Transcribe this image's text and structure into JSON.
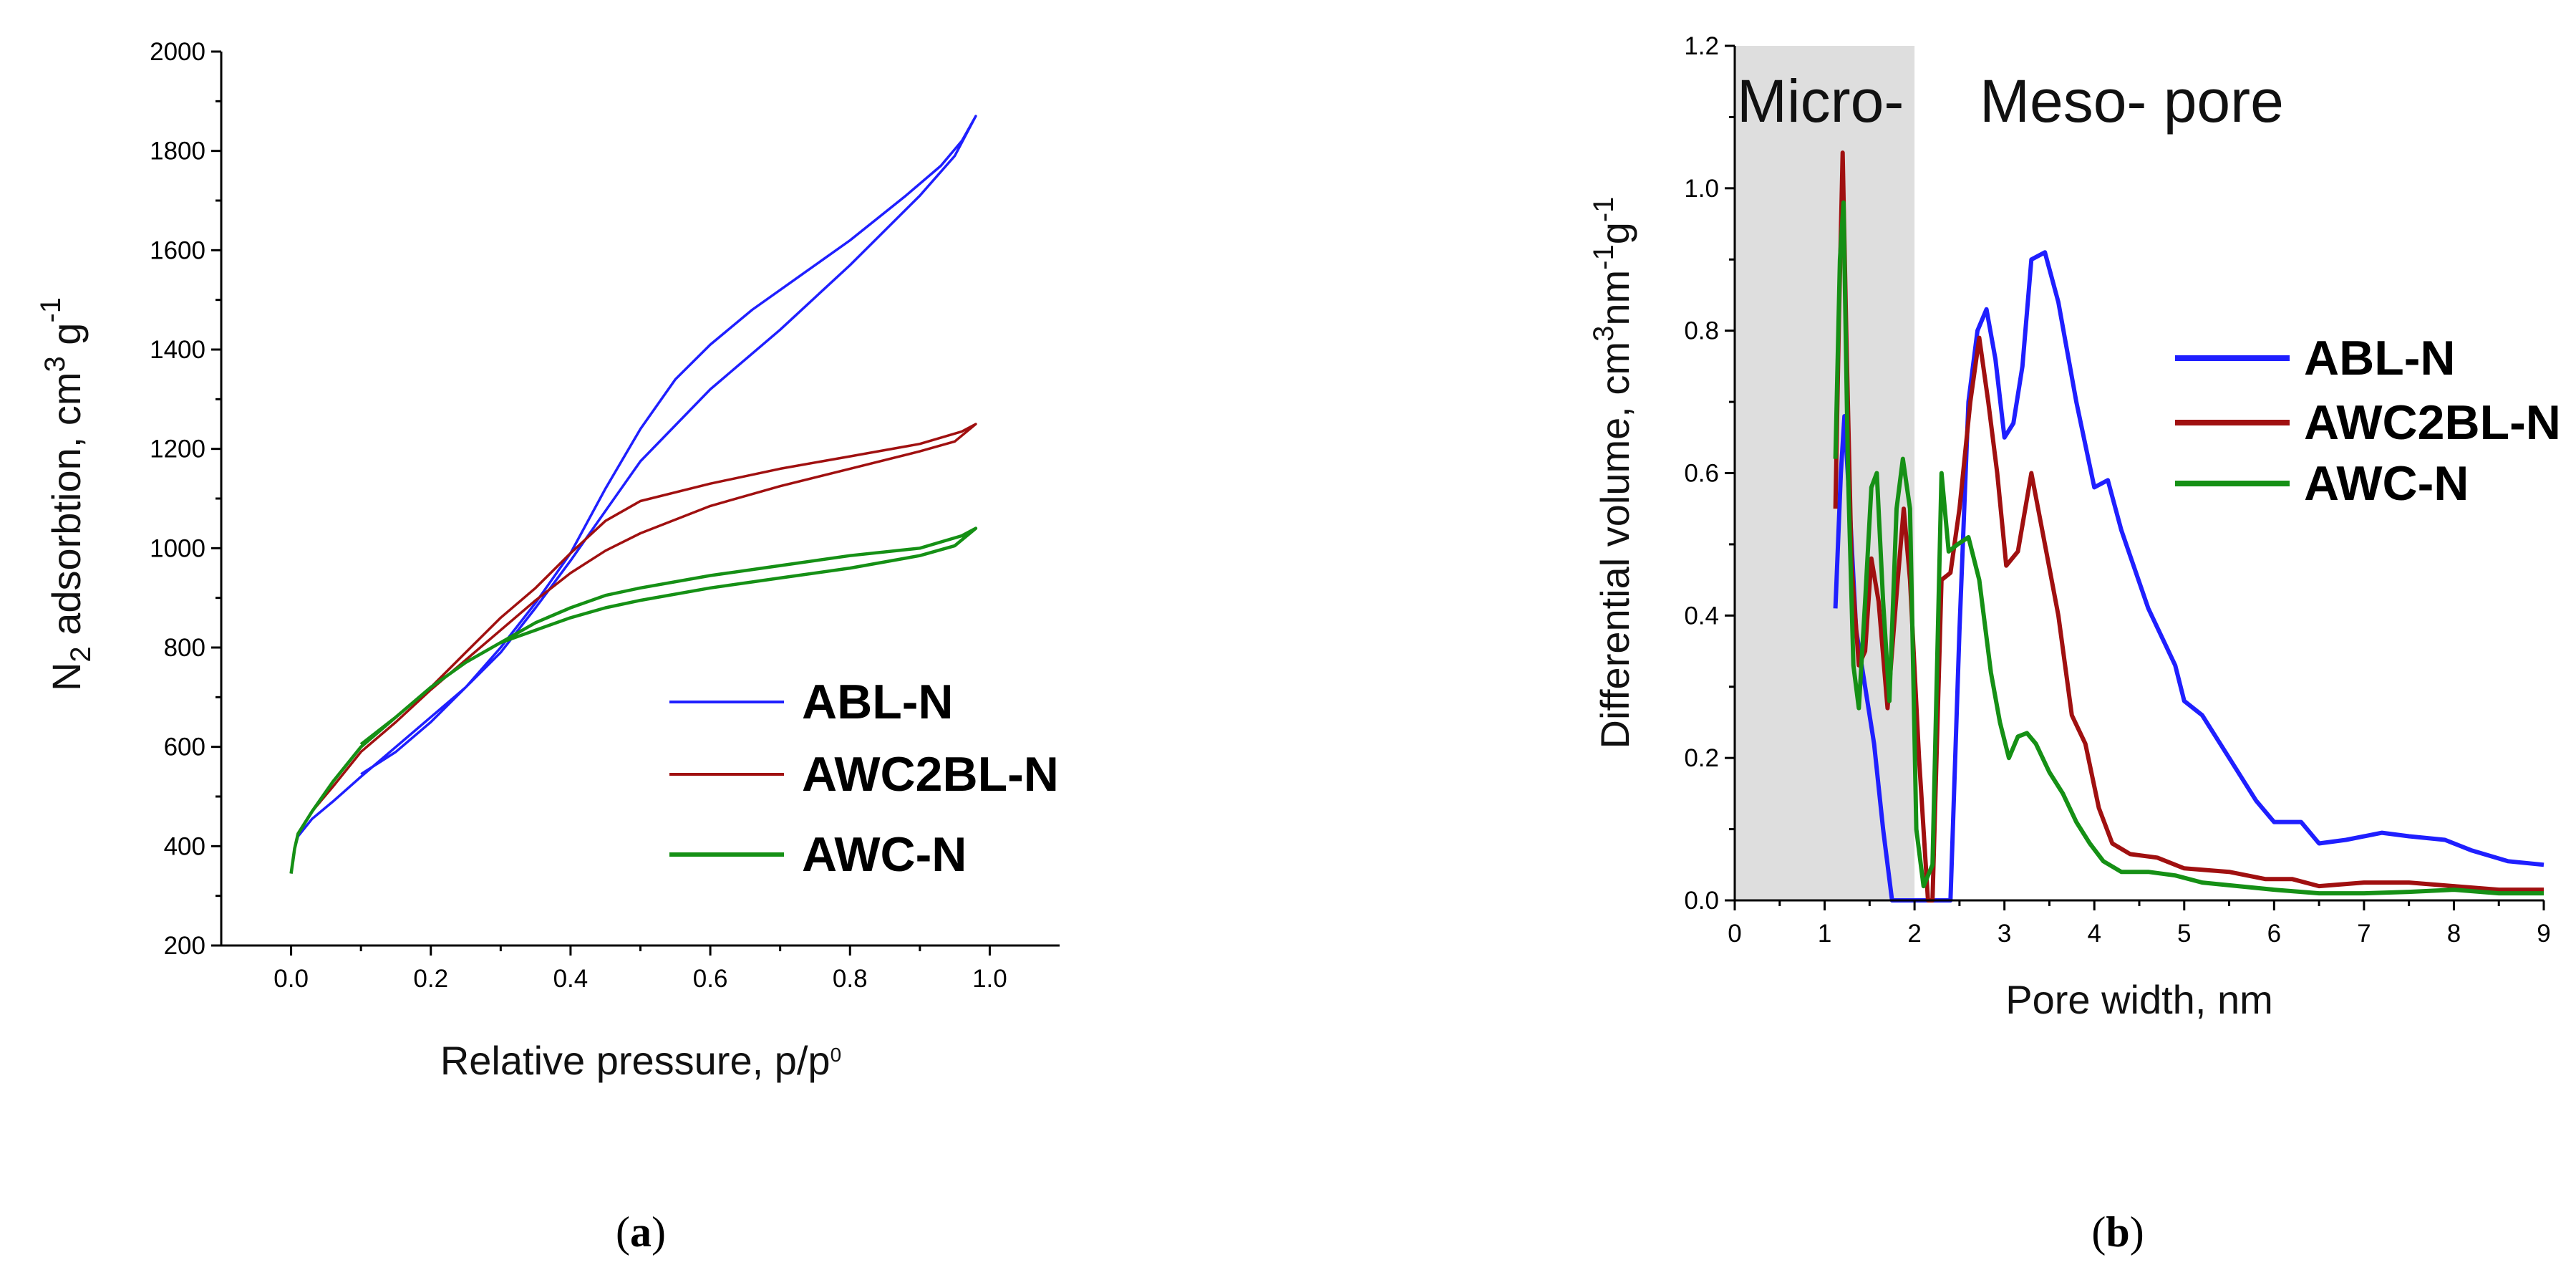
{
  "chart_data": [
    {
      "type": "line",
      "panel": "(a)",
      "xlabel": "Relative pressure, p/p",
      "xlabel_sup": "0",
      "ylabel": "N",
      "ylabel_sub": "2",
      "ylabel_rest": " adsorbtion, cm",
      "ylabel_sup": "3",
      "ylabel_end": " g",
      "ylabel_sup2": "-1",
      "xlim": [
        -0.1,
        1.1
      ],
      "ylim": [
        200,
        2000
      ],
      "xticks": [
        "0.0",
        "0.2",
        "0.4",
        "0.6",
        "0.8",
        "1.0"
      ],
      "yticks": [
        "200",
        "400",
        "600",
        "800",
        "1000",
        "1200",
        "1400",
        "1600",
        "1800",
        "2000"
      ],
      "legend_position": "bottom-right",
      "series": [
        {
          "name": "ABL-N",
          "color": "#1f1fff",
          "points": [
            [
              0.0,
              345
            ],
            [
              0.005,
              395
            ],
            [
              0.01,
              420
            ],
            [
              0.03,
              455
            ],
            [
              0.06,
              490
            ],
            [
              0.1,
              540
            ],
            [
              0.15,
              600
            ],
            [
              0.2,
              660
            ],
            [
              0.25,
              720
            ],
            [
              0.3,
              790
            ],
            [
              0.35,
              880
            ],
            [
              0.4,
              975
            ],
            [
              0.45,
              1075
            ],
            [
              0.5,
              1175
            ],
            [
              0.6,
              1320
            ],
            [
              0.7,
              1440
            ],
            [
              0.8,
              1570
            ],
            [
              0.9,
              1710
            ],
            [
              0.95,
              1790
            ],
            [
              0.98,
              1870
            ],
            [
              0.96,
              1820
            ],
            [
              0.93,
              1770
            ],
            [
              0.88,
              1710
            ],
            [
              0.8,
              1620
            ],
            [
              0.72,
              1540
            ],
            [
              0.66,
              1480
            ],
            [
              0.6,
              1410
            ],
            [
              0.55,
              1340
            ],
            [
              0.5,
              1240
            ],
            [
              0.45,
              1120
            ],
            [
              0.4,
              990
            ],
            [
              0.35,
              890
            ],
            [
              0.3,
              800
            ],
            [
              0.25,
              720
            ],
            [
              0.2,
              650
            ],
            [
              0.15,
              590
            ],
            [
              0.1,
              545
            ]
          ]
        },
        {
          "name": "AWC2BL-N",
          "color": "#a01010",
          "points": [
            [
              0.0,
              345
            ],
            [
              0.005,
              395
            ],
            [
              0.01,
              425
            ],
            [
              0.03,
              470
            ],
            [
              0.06,
              520
            ],
            [
              0.1,
              590
            ],
            [
              0.15,
              650
            ],
            [
              0.2,
              715
            ],
            [
              0.25,
              775
            ],
            [
              0.3,
              835
            ],
            [
              0.35,
              895
            ],
            [
              0.4,
              950
            ],
            [
              0.45,
              995
            ],
            [
              0.5,
              1030
            ],
            [
              0.6,
              1085
            ],
            [
              0.7,
              1125
            ],
            [
              0.8,
              1160
            ],
            [
              0.9,
              1195
            ],
            [
              0.95,
              1215
            ],
            [
              0.98,
              1250
            ],
            [
              0.96,
              1235
            ],
            [
              0.9,
              1210
            ],
            [
              0.8,
              1185
            ],
            [
              0.7,
              1160
            ],
            [
              0.6,
              1130
            ],
            [
              0.5,
              1095
            ],
            [
              0.45,
              1055
            ],
            [
              0.4,
              990
            ],
            [
              0.35,
              920
            ],
            [
              0.3,
              860
            ],
            [
              0.25,
              790
            ],
            [
              0.2,
              720
            ],
            [
              0.15,
              660
            ],
            [
              0.1,
              605
            ]
          ]
        },
        {
          "name": "AWC-N",
          "color": "#159015",
          "points": [
            [
              0.0,
              345
            ],
            [
              0.005,
              395
            ],
            [
              0.01,
              425
            ],
            [
              0.03,
              470
            ],
            [
              0.06,
              530
            ],
            [
              0.1,
              600
            ],
            [
              0.15,
              660
            ],
            [
              0.2,
              720
            ],
            [
              0.25,
              770
            ],
            [
              0.3,
              810
            ],
            [
              0.35,
              835
            ],
            [
              0.4,
              860
            ],
            [
              0.45,
              880
            ],
            [
              0.5,
              895
            ],
            [
              0.6,
              920
            ],
            [
              0.7,
              940
            ],
            [
              0.8,
              960
            ],
            [
              0.9,
              985
            ],
            [
              0.95,
              1005
            ],
            [
              0.98,
              1040
            ],
            [
              0.96,
              1025
            ],
            [
              0.9,
              1000
            ],
            [
              0.8,
              985
            ],
            [
              0.7,
              965
            ],
            [
              0.6,
              945
            ],
            [
              0.5,
              920
            ],
            [
              0.45,
              905
            ],
            [
              0.4,
              880
            ],
            [
              0.35,
              850
            ],
            [
              0.3,
              810
            ],
            [
              0.25,
              770
            ],
            [
              0.2,
              720
            ],
            [
              0.15,
              660
            ],
            [
              0.1,
              605
            ]
          ]
        }
      ]
    },
    {
      "type": "line",
      "panel": "(b)",
      "xlabel": "Pore width, nm",
      "ylabel": "Differential volume, cm",
      "ylabel_sup": "3",
      "ylabel_mid": "nm",
      "ylabel_sup2": "-1",
      "ylabel_end": "g",
      "ylabel_sup3": "-1",
      "xlim": [
        0,
        9
      ],
      "ylim": [
        0,
        1.2
      ],
      "xticks": [
        "0",
        "1",
        "2",
        "3",
        "4",
        "5",
        "6",
        "7",
        "8",
        "9"
      ],
      "yticks": [
        "0.0",
        "0.2",
        "0.4",
        "0.6",
        "0.8",
        "1.0",
        "1.2"
      ],
      "shaded_region": [
        0,
        2
      ],
      "annotations": [
        "Micro-",
        "Meso- pore"
      ],
      "legend_position": "right",
      "series": [
        {
          "name": "ABL-N",
          "color": "#1f1fff",
          "points": [
            [
              1.12,
              0.41
            ],
            [
              1.18,
              0.6
            ],
            [
              1.22,
              0.68
            ],
            [
              1.28,
              0.55
            ],
            [
              1.35,
              0.38
            ],
            [
              1.45,
              0.3
            ],
            [
              1.55,
              0.22
            ],
            [
              1.65,
              0.1
            ],
            [
              1.75,
              0.0
            ],
            [
              1.9,
              0.0
            ],
            [
              2.2,
              0.0
            ],
            [
              2.4,
              0.0
            ],
            [
              2.5,
              0.38
            ],
            [
              2.6,
              0.7
            ],
            [
              2.7,
              0.8
            ],
            [
              2.8,
              0.83
            ],
            [
              2.9,
              0.76
            ],
            [
              3.0,
              0.65
            ],
            [
              3.1,
              0.67
            ],
            [
              3.2,
              0.75
            ],
            [
              3.3,
              0.9
            ],
            [
              3.45,
              0.91
            ],
            [
              3.6,
              0.84
            ],
            [
              3.8,
              0.7
            ],
            [
              4.0,
              0.58
            ],
            [
              4.15,
              0.59
            ],
            [
              4.3,
              0.52
            ],
            [
              4.6,
              0.41
            ],
            [
              4.9,
              0.33
            ],
            [
              5.0,
              0.28
            ],
            [
              5.2,
              0.26
            ],
            [
              5.5,
              0.2
            ],
            [
              5.8,
              0.14
            ],
            [
              6.0,
              0.11
            ],
            [
              6.3,
              0.11
            ],
            [
              6.5,
              0.08
            ],
            [
              6.8,
              0.085
            ],
            [
              7.2,
              0.095
            ],
            [
              7.5,
              0.09
            ],
            [
              7.9,
              0.085
            ],
            [
              8.2,
              0.07
            ],
            [
              8.6,
              0.055
            ],
            [
              9.0,
              0.05
            ]
          ]
        },
        {
          "name": "AWC2BL-N",
          "color": "#a01010",
          "points": [
            [
              1.12,
              0.55
            ],
            [
              1.16,
              0.82
            ],
            [
              1.2,
              1.05
            ],
            [
              1.24,
              0.8
            ],
            [
              1.3,
              0.47
            ],
            [
              1.38,
              0.33
            ],
            [
              1.45,
              0.35
            ],
            [
              1.52,
              0.48
            ],
            [
              1.6,
              0.42
            ],
            [
              1.7,
              0.27
            ],
            [
              1.8,
              0.43
            ],
            [
              1.88,
              0.55
            ],
            [
              1.95,
              0.45
            ],
            [
              2.05,
              0.2
            ],
            [
              2.15,
              0.0
            ],
            [
              2.2,
              0.0
            ],
            [
              2.3,
              0.45
            ],
            [
              2.4,
              0.46
            ],
            [
              2.5,
              0.55
            ],
            [
              2.62,
              0.7
            ],
            [
              2.72,
              0.79
            ],
            [
              2.82,
              0.7
            ],
            [
              2.92,
              0.6
            ],
            [
              3.02,
              0.47
            ],
            [
              3.15,
              0.49
            ],
            [
              3.3,
              0.6
            ],
            [
              3.45,
              0.5
            ],
            [
              3.6,
              0.4
            ],
            [
              3.75,
              0.26
            ],
            [
              3.9,
              0.22
            ],
            [
              4.05,
              0.13
            ],
            [
              4.2,
              0.08
            ],
            [
              4.4,
              0.065
            ],
            [
              4.7,
              0.06
            ],
            [
              5.0,
              0.045
            ],
            [
              5.5,
              0.04
            ],
            [
              5.9,
              0.03
            ],
            [
              6.2,
              0.03
            ],
            [
              6.5,
              0.02
            ],
            [
              7.0,
              0.025
            ],
            [
              7.5,
              0.025
            ],
            [
              8.0,
              0.02
            ],
            [
              8.5,
              0.015
            ],
            [
              9.0,
              0.015
            ]
          ]
        },
        {
          "name": "AWC-N",
          "color": "#159015",
          "points": [
            [
              1.12,
              0.62
            ],
            [
              1.17,
              0.9
            ],
            [
              1.21,
              0.98
            ],
            [
              1.26,
              0.6
            ],
            [
              1.32,
              0.33
            ],
            [
              1.38,
              0.27
            ],
            [
              1.45,
              0.42
            ],
            [
              1.52,
              0.58
            ],
            [
              1.58,
              0.6
            ],
            [
              1.65,
              0.42
            ],
            [
              1.72,
              0.28
            ],
            [
              1.8,
              0.55
            ],
            [
              1.87,
              0.62
            ],
            [
              1.95,
              0.55
            ],
            [
              2.02,
              0.1
            ],
            [
              2.1,
              0.02
            ],
            [
              2.2,
              0.05
            ],
            [
              2.3,
              0.6
            ],
            [
              2.38,
              0.49
            ],
            [
              2.48,
              0.5
            ],
            [
              2.6,
              0.51
            ],
            [
              2.72,
              0.45
            ],
            [
              2.85,
              0.32
            ],
            [
              2.95,
              0.25
            ],
            [
              3.05,
              0.2
            ],
            [
              3.15,
              0.23
            ],
            [
              3.25,
              0.235
            ],
            [
              3.35,
              0.22
            ],
            [
              3.5,
              0.18
            ],
            [
              3.65,
              0.15
            ],
            [
              3.8,
              0.11
            ],
            [
              3.95,
              0.08
            ],
            [
              4.1,
              0.055
            ],
            [
              4.3,
              0.04
            ],
            [
              4.6,
              0.04
            ],
            [
              4.9,
              0.035
            ],
            [
              5.2,
              0.025
            ],
            [
              5.6,
              0.02
            ],
            [
              6.0,
              0.015
            ],
            [
              6.5,
              0.01
            ],
            [
              7.0,
              0.01
            ],
            [
              7.5,
              0.012
            ],
            [
              8.0,
              0.015
            ],
            [
              8.5,
              0.01
            ],
            [
              9.0,
              0.01
            ]
          ]
        }
      ]
    }
  ]
}
